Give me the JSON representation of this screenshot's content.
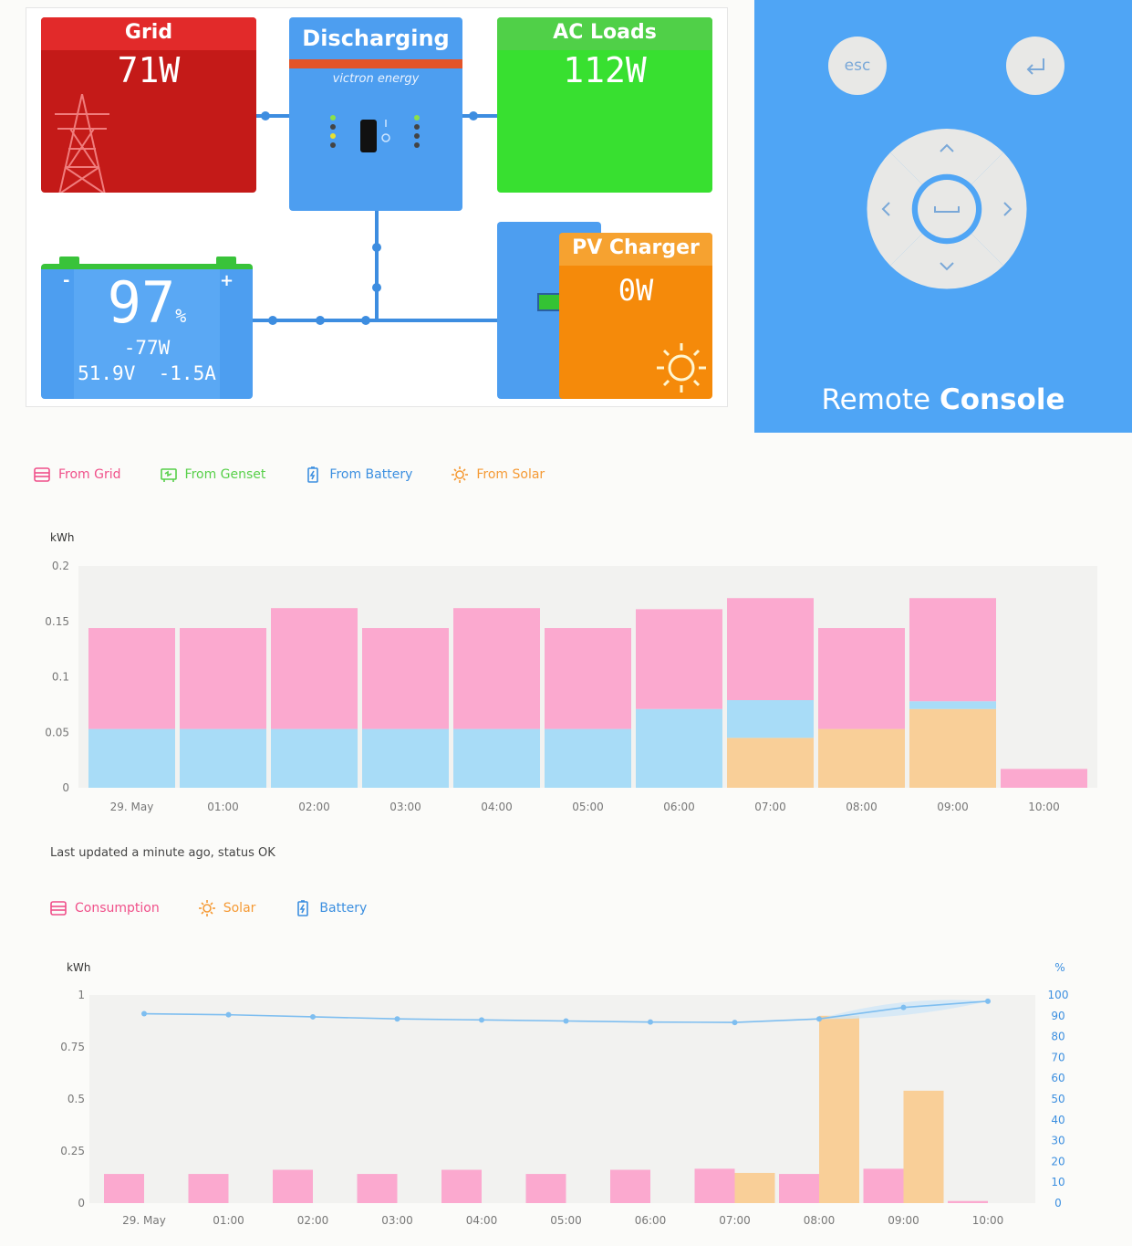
{
  "overview": {
    "grid": {
      "title": "Grid",
      "power": "71W"
    },
    "inverter": {
      "state": "Discharging",
      "brand": "victron energy"
    },
    "ac_loads": {
      "title": "AC Loads",
      "power": "112W"
    },
    "battery": {
      "soc": "97",
      "soc_unit": "%",
      "power": "-77W",
      "voltage": "51.9V",
      "current": "-1.5A",
      "minus": "-",
      "plus": "+"
    },
    "pv_charger": {
      "title": "PV Charger",
      "power": "0W"
    }
  },
  "remote_console": {
    "esc_label": "esc",
    "title_light": "Remote ",
    "title_bold": "Console",
    "colors": {
      "background": "#4fa5f5",
      "buttons": "#e8e8e6"
    }
  },
  "source_legend": [
    {
      "label": "From Grid",
      "color": "#f0508a",
      "icon": "grid-icon"
    },
    {
      "label": "From Genset",
      "color": "#58d04a",
      "icon": "genset-icon"
    },
    {
      "label": "From Battery",
      "color": "#3c8fe0",
      "icon": "battery-icon"
    },
    {
      "label": "From Solar",
      "color": "#f59a35",
      "icon": "sun-icon"
    }
  ],
  "status_text": "Last updated a minute ago, status OK",
  "balance_legend": [
    {
      "label": "Consumption",
      "color": "#f0508a",
      "icon": "grid-icon"
    },
    {
      "label": "Solar",
      "color": "#f59a35",
      "icon": "sun-icon"
    },
    {
      "label": "Battery",
      "color": "#3c8fe0",
      "icon": "battery-icon"
    }
  ],
  "chart_data": [
    {
      "type": "bar",
      "stacked": true,
      "ylabel": "kWh",
      "ylim": [
        0,
        0.2
      ],
      "yticks": [
        "0.2",
        "0.15",
        "0.1",
        "0.05",
        "0"
      ],
      "categories": [
        "29. May",
        "01:00",
        "02:00",
        "03:00",
        "04:00",
        "05:00",
        "06:00",
        "07:00",
        "08:00",
        "09:00",
        "10:00"
      ],
      "series": [
        {
          "name": "From Solar",
          "color": "#f9cf98",
          "values": [
            0,
            0,
            0,
            0,
            0,
            0,
            0,
            0.045,
            0.053,
            0.071,
            0
          ]
        },
        {
          "name": "From Battery",
          "color": "#a8dcf7",
          "values": [
            0.053,
            0.053,
            0.053,
            0.053,
            0.053,
            0.053,
            0.071,
            0.034,
            0,
            0.007,
            0
          ]
        },
        {
          "name": "From Grid",
          "color": "#fba9cf",
          "values": [
            0.091,
            0.091,
            0.109,
            0.091,
            0.109,
            0.091,
            0.09,
            0.092,
            0.091,
            0.093,
            0.017
          ]
        }
      ],
      "grid": false
    },
    {
      "type": "bar",
      "ylabel": "kWh",
      "y2label": "%",
      "ylim": [
        0,
        1
      ],
      "y2lim": [
        0,
        100
      ],
      "yticks": [
        "1",
        "0.75",
        "0.5",
        "0.25",
        "0"
      ],
      "y2ticks": [
        "100",
        "90",
        "80",
        "70",
        "60",
        "50",
        "40",
        "30",
        "20",
        "10",
        "0"
      ],
      "categories": [
        "29. May",
        "01:00",
        "02:00",
        "03:00",
        "04:00",
        "05:00",
        "06:00",
        "07:00",
        "08:00",
        "09:00",
        "10:00"
      ],
      "series": [
        {
          "name": "Consumption",
          "color": "#fba9cf",
          "values": [
            0.14,
            0.14,
            0.16,
            0.14,
            0.16,
            0.14,
            0.16,
            0.165,
            0.14,
            0.165,
            0.01
          ]
        },
        {
          "name": "Solar",
          "color": "#f9cf98",
          "values": [
            0,
            0,
            0,
            0,
            0,
            0,
            0,
            0.145,
            0.9,
            0.54,
            0
          ]
        }
      ],
      "line": {
        "name": "Battery",
        "color": "#7ebef0",
        "axis": "y2",
        "values": [
          91,
          90.5,
          89.5,
          88.5,
          88,
          87.5,
          87,
          86.8,
          88.5,
          94,
          97
        ]
      },
      "grid": false
    }
  ]
}
